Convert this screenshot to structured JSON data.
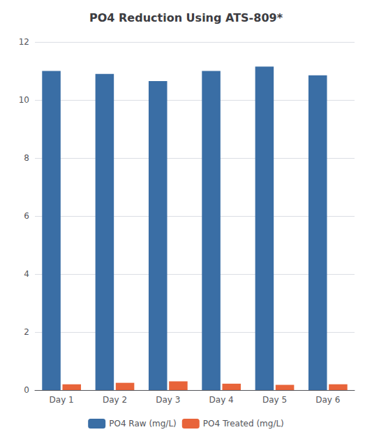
{
  "chart_data": {
    "type": "bar",
    "title": "PO4 Reduction Using ATS-809*",
    "categories": [
      "Day 1",
      "Day 2",
      "Day 3",
      "Day 4",
      "Day 5",
      "Day 6"
    ],
    "series": [
      {
        "name": "PO4 Raw (mg/L)",
        "color": "#3A6EA5",
        "values": [
          11.0,
          10.9,
          10.65,
          11.0,
          11.15,
          10.85
        ]
      },
      {
        "name": "PO4 Treated (mg/L)",
        "color": "#E8643A",
        "values": [
          0.2,
          0.25,
          0.3,
          0.22,
          0.18,
          0.2
        ]
      }
    ],
    "ylim": [
      0,
      12
    ],
    "yticks": [
      0,
      2,
      4,
      6,
      8,
      10,
      12
    ],
    "grid": true,
    "legend": "bottom"
  }
}
